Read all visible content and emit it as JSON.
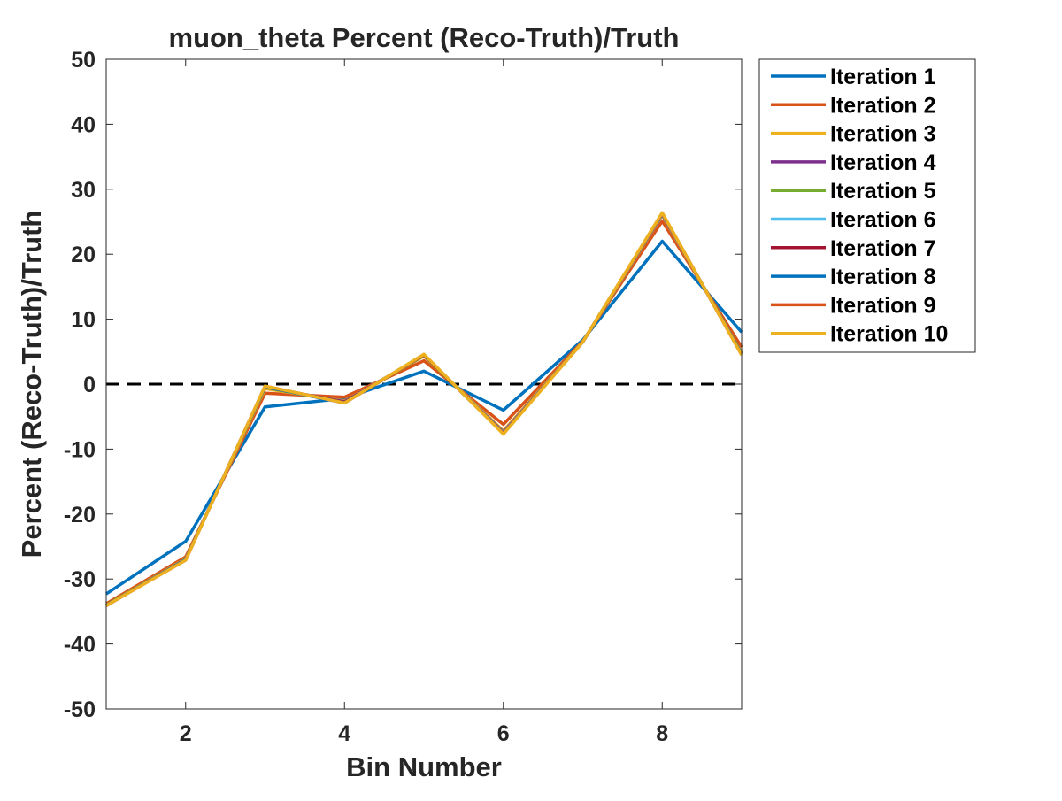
{
  "chart_data": {
    "type": "line",
    "title": "muon_theta Percent (Reco-Truth)/Truth",
    "xlabel": "Bin Number",
    "ylabel": "Percent (Reco-Truth)/Truth",
    "xlim": [
      1,
      9
    ],
    "ylim": [
      -50,
      50
    ],
    "xticks": [
      2,
      4,
      6,
      8
    ],
    "yticks": [
      -50,
      -40,
      -30,
      -20,
      -10,
      0,
      10,
      20,
      30,
      40,
      50
    ],
    "grid": false,
    "legend_placement": "outside-top-right",
    "reference_line": {
      "y": 0,
      "style": "dashed",
      "color": "#000000"
    },
    "x": [
      1,
      2,
      3,
      4,
      5,
      6,
      7,
      8,
      9
    ],
    "series": [
      {
        "name": "Iteration 1",
        "color": "#0072BD",
        "values": [
          -32.3,
          -24.2,
          -3.5,
          -2.2,
          2.0,
          -4.0,
          6.8,
          22.0,
          8.0
        ]
      },
      {
        "name": "Iteration 2",
        "color": "#D95319",
        "values": [
          -33.8,
          -26.6,
          -1.4,
          -2.0,
          3.6,
          -6.2,
          6.6,
          25.1,
          5.7
        ]
      },
      {
        "name": "Iteration 3",
        "color": "#EDB120",
        "values": [
          -34.0,
          -26.9,
          -0.7,
          -2.6,
          4.3,
          -7.2,
          6.5,
          26.0,
          4.8
        ]
      },
      {
        "name": "Iteration 4",
        "color": "#7E2F8E",
        "values": [
          -34.0,
          -27.0,
          -0.5,
          -2.7,
          4.4,
          -7.4,
          6.5,
          26.1,
          4.7
        ]
      },
      {
        "name": "Iteration 5",
        "color": "#77AC30",
        "values": [
          -34.0,
          -27.0,
          -0.5,
          -2.8,
          4.4,
          -7.5,
          6.5,
          26.2,
          4.7
        ]
      },
      {
        "name": "Iteration 6",
        "color": "#4DBEEE",
        "values": [
          -34.1,
          -27.0,
          -0.4,
          -2.8,
          4.5,
          -7.5,
          6.5,
          26.2,
          4.6
        ]
      },
      {
        "name": "Iteration 7",
        "color": "#A2142F",
        "values": [
          -34.1,
          -27.0,
          -0.4,
          -2.8,
          4.5,
          -7.6,
          6.5,
          26.3,
          4.6
        ]
      },
      {
        "name": "Iteration 8",
        "color": "#0072BD",
        "values": [
          -34.1,
          -27.0,
          -0.4,
          -2.9,
          4.5,
          -7.6,
          6.5,
          26.3,
          4.6
        ]
      },
      {
        "name": "Iteration 9",
        "color": "#D95319",
        "values": [
          -34.1,
          -27.1,
          -0.3,
          -2.9,
          4.5,
          -7.6,
          6.5,
          26.3,
          4.5
        ]
      },
      {
        "name": "Iteration 10",
        "color": "#EDB120",
        "values": [
          -34.1,
          -27.1,
          -0.3,
          -2.9,
          4.6,
          -7.7,
          6.5,
          26.4,
          4.5
        ]
      }
    ]
  }
}
